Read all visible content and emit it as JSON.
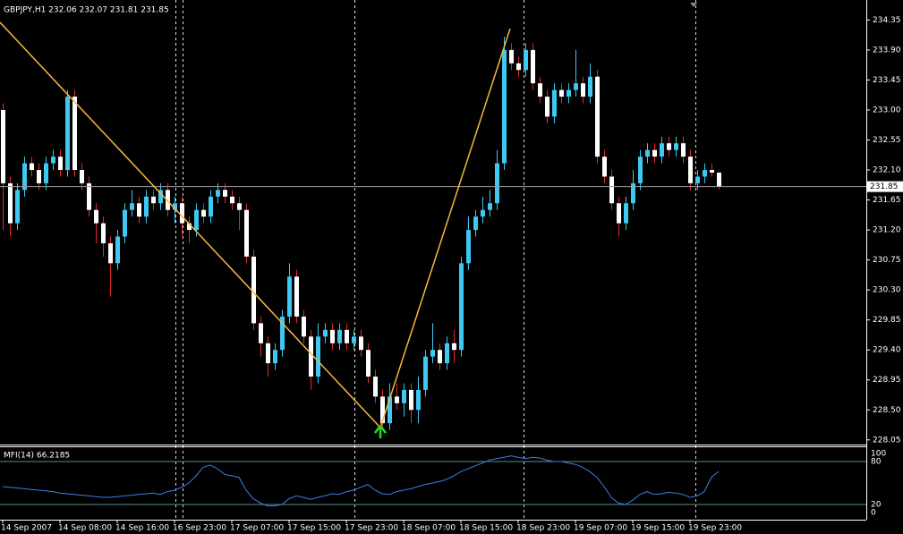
{
  "chart_data": [
    {
      "type": "candlestick",
      "title": "GBPJPY,H1  232.06 232.07 231.81 231.85",
      "categories": [
        "14 Sep 2007",
        null,
        null,
        null,
        null,
        null,
        null,
        null,
        "14 Sep 08:00",
        null,
        null,
        null,
        null,
        null,
        null,
        null,
        "14 Sep 16:00",
        null,
        null,
        null,
        null,
        null,
        null,
        null,
        "16 Sep 23:00",
        null,
        null,
        null,
        null,
        null,
        null,
        null,
        "17 Sep 07:00",
        null,
        null,
        null,
        null,
        null,
        null,
        null,
        "17 Sep 15:00",
        null,
        null,
        null,
        null,
        null,
        null,
        null,
        "17 Sep 23:00",
        null,
        null,
        null,
        null,
        null,
        null,
        null,
        "18 Sep 07:00",
        null,
        null,
        null,
        null,
        null,
        null,
        null,
        "18 Sep 15:00",
        null,
        null,
        null,
        null,
        null,
        null,
        null,
        "18 Sep 23:00",
        null,
        null,
        null,
        null,
        null,
        null,
        null,
        "19 Sep 07:00",
        null,
        null,
        null,
        null,
        null,
        null,
        null,
        "19 Sep 15:00",
        null,
        null,
        null,
        null,
        null,
        null,
        null,
        "19 Sep 23:00",
        null,
        null,
        null,
        null
      ],
      "open": [
        233.0,
        231.9,
        231.3,
        231.8,
        232.2,
        232.1,
        231.9,
        232.2,
        232.3,
        232.1,
        233.2,
        232.1,
        231.9,
        231.5,
        231.3,
        231.0,
        230.7,
        231.1,
        231.5,
        231.6,
        231.4,
        231.7,
        231.6,
        231.8,
        231.5,
        231.6,
        231.3,
        231.2,
        231.5,
        231.4,
        231.7,
        231.8,
        231.7,
        231.6,
        231.5,
        230.8,
        229.8,
        229.5,
        229.2,
        229.4,
        229.9,
        230.5,
        229.9,
        229.6,
        229.0,
        229.6,
        229.7,
        229.5,
        229.7,
        229.5,
        229.6,
        229.4,
        229.0,
        228.7,
        228.3,
        228.7,
        228.6,
        228.8,
        228.5,
        228.8,
        229.3,
        229.4,
        229.2,
        229.5,
        229.4,
        230.7,
        231.2,
        231.4,
        231.5,
        231.6,
        232.2,
        233.9,
        233.7,
        233.6,
        233.9,
        233.4,
        233.2,
        232.9,
        233.3,
        233.2,
        233.3,
        233.4,
        233.2,
        233.5,
        232.3,
        232.0,
        231.6,
        231.3,
        231.6,
        231.9,
        232.3,
        232.4,
        232.3,
        232.5,
        232.4,
        232.5,
        232.3,
        231.9,
        232.0,
        232.1,
        232.06
      ],
      "high": [
        233.1,
        232.0,
        231.9,
        232.3,
        232.3,
        232.2,
        232.3,
        232.4,
        232.4,
        233.3,
        233.3,
        232.2,
        232.0,
        231.6,
        231.4,
        231.1,
        231.2,
        231.6,
        231.8,
        231.7,
        231.8,
        231.8,
        231.9,
        231.9,
        231.7,
        231.7,
        231.4,
        231.6,
        231.6,
        231.8,
        231.9,
        231.9,
        231.8,
        231.7,
        231.6,
        230.9,
        229.9,
        229.6,
        229.5,
        230.0,
        230.7,
        230.6,
        230.0,
        229.7,
        229.8,
        229.8,
        229.8,
        229.8,
        229.8,
        229.7,
        229.7,
        229.5,
        229.1,
        228.8,
        228.9,
        228.9,
        228.9,
        228.9,
        229.0,
        229.4,
        229.8,
        229.5,
        229.6,
        229.7,
        230.8,
        231.4,
        231.5,
        231.7,
        231.8,
        232.4,
        234.1,
        234.0,
        233.8,
        234.0,
        234.0,
        233.5,
        233.3,
        233.4,
        233.4,
        233.4,
        233.9,
        233.5,
        233.7,
        233.6,
        232.4,
        232.1,
        231.7,
        231.7,
        232.1,
        232.4,
        232.5,
        232.5,
        232.6,
        232.6,
        232.6,
        232.6,
        232.4,
        232.1,
        232.2,
        232.2,
        232.07
      ],
      "low": [
        231.2,
        231.1,
        231.2,
        231.7,
        232.0,
        231.8,
        231.8,
        232.1,
        232.0,
        232.0,
        232.0,
        231.8,
        231.4,
        231.0,
        230.8,
        230.2,
        230.6,
        231.0,
        231.4,
        231.3,
        231.3,
        231.5,
        231.5,
        231.4,
        231.3,
        231.1,
        231.0,
        231.1,
        231.3,
        231.3,
        231.6,
        231.6,
        231.5,
        231.2,
        230.7,
        229.7,
        229.3,
        229.0,
        229.1,
        229.3,
        229.8,
        229.8,
        229.5,
        228.8,
        228.9,
        229.5,
        229.4,
        229.4,
        229.4,
        229.4,
        229.3,
        228.9,
        228.6,
        228.2,
        228.2,
        228.5,
        228.4,
        228.3,
        228.3,
        228.7,
        229.2,
        229.1,
        229.1,
        229.2,
        229.3,
        230.6,
        231.1,
        231.3,
        231.4,
        231.5,
        232.1,
        233.6,
        233.5,
        233.5,
        233.3,
        233.1,
        232.8,
        232.8,
        233.1,
        233.1,
        233.2,
        233.1,
        233.1,
        232.2,
        231.9,
        231.5,
        231.1,
        231.2,
        231.5,
        231.8,
        232.2,
        232.2,
        232.2,
        232.3,
        232.3,
        232.2,
        231.8,
        231.8,
        231.9,
        232.0,
        231.81
      ],
      "close": [
        231.9,
        231.3,
        231.8,
        232.2,
        232.1,
        231.9,
        232.2,
        232.3,
        232.1,
        233.2,
        232.1,
        231.9,
        231.5,
        231.3,
        231.0,
        230.7,
        231.1,
        231.5,
        231.6,
        231.4,
        231.7,
        231.6,
        231.8,
        231.5,
        231.6,
        231.3,
        231.2,
        231.5,
        231.4,
        231.7,
        231.8,
        231.7,
        231.6,
        231.5,
        230.8,
        229.8,
        229.5,
        229.2,
        229.4,
        229.9,
        230.5,
        229.9,
        229.6,
        229.0,
        229.6,
        229.7,
        229.5,
        229.7,
        229.5,
        229.6,
        229.4,
        229.0,
        228.7,
        228.3,
        228.7,
        228.6,
        228.8,
        228.5,
        228.8,
        229.3,
        229.4,
        229.2,
        229.5,
        229.4,
        230.7,
        231.2,
        231.4,
        231.5,
        231.6,
        232.2,
        233.9,
        233.7,
        233.6,
        233.9,
        233.4,
        233.2,
        232.9,
        233.3,
        233.2,
        233.3,
        233.4,
        233.2,
        233.5,
        232.3,
        232.0,
        231.6,
        231.3,
        231.6,
        231.9,
        232.3,
        232.4,
        232.3,
        232.5,
        232.4,
        232.5,
        232.3,
        231.9,
        232.0,
        232.1,
        232.06,
        231.85
      ],
      "ylim": [
        227.98,
        234.65
      ],
      "yticks": [
        228.05,
        {
          "value": 228.5,
          "label": "228.50"
        },
        228.95,
        {
          "value": 229.4,
          "label": "229.40"
        },
        229.85,
        {
          "value": 230.3,
          "label": "230.30"
        },
        230.75,
        {
          "value": 231.2,
          "label": "231.20"
        },
        231.65,
        {
          "value": 232.1,
          "label": "232.10"
        },
        232.55,
        {
          "value": 233.0,
          "label": "233.00"
        },
        233.45,
        {
          "value": 233.9,
          "label": "233.90"
        },
        234.35
      ],
      "up_color": "#3ec8f2",
      "down_color": "#ffffff",
      "wick_color": "#e02a2a"
    },
    {
      "type": "line",
      "title": "MFI(14) 66.2185",
      "values": [
        45,
        44,
        43,
        42,
        41,
        40,
        39,
        38,
        36,
        35,
        34,
        33,
        32,
        31,
        30,
        30,
        31,
        32,
        33,
        34,
        35,
        36,
        34,
        38,
        40,
        44,
        50,
        60,
        72,
        75,
        70,
        62,
        60,
        58,
        40,
        28,
        22,
        18,
        18,
        20,
        28,
        32,
        30,
        27,
        30,
        32,
        35,
        34,
        38,
        40,
        44,
        48,
        40,
        35,
        34,
        38,
        40,
        42,
        45,
        48,
        50,
        52,
        55,
        60,
        66,
        70,
        74,
        78,
        82,
        84,
        86,
        88,
        86,
        84,
        86,
        85,
        82,
        80,
        80,
        78,
        76,
        72,
        66,
        58,
        45,
        30,
        22,
        20,
        26,
        34,
        38,
        34,
        35,
        37,
        36,
        34,
        30,
        32,
        38,
        58,
        66.2185
      ],
      "color": "#3b7fe0",
      "ylim": [
        0,
        100
      ],
      "yticks": [
        100,
        80,
        20,
        0
      ],
      "grid_color": "#5f8a8a"
    }
  ]
}
